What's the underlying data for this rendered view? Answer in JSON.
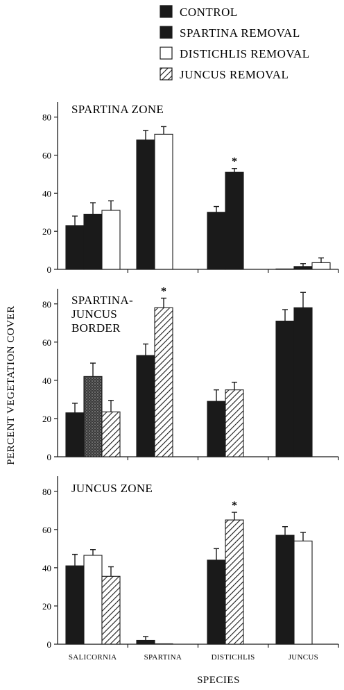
{
  "chart_data": {
    "type": "bar",
    "xlabel": "SPECIES",
    "ylabel": "PERCENT VEGETATION COVER",
    "ylim": [
      0,
      85
    ],
    "yticks": [
      0,
      20,
      40,
      60,
      80
    ],
    "grid": false,
    "legend_position": "top",
    "legend": [
      {
        "label": "CONTROL",
        "style": "solid"
      },
      {
        "label": "SPARTINA REMOVAL",
        "style": "solid"
      },
      {
        "label": "DISTICHLIS REMOVAL",
        "style": "open"
      },
      {
        "label": "JUNCUS REMOVAL",
        "style": "hatched"
      }
    ],
    "categories": [
      "SALICORNIA",
      "SPARTINA",
      "DISTICHLIS",
      "JUNCUS"
    ],
    "panels": [
      {
        "title_lines": [
          "SPARTINA ZONE"
        ],
        "groups": [
          {
            "bars": [
              {
                "style": "solid",
                "value": 23,
                "err": 5
              },
              {
                "style": "solid",
                "value": 29,
                "err": 6
              },
              {
                "style": "open",
                "value": 31,
                "err": 5
              }
            ]
          },
          {
            "bars": [
              {
                "style": "solid",
                "value": 68,
                "err": 5
              },
              {
                "style": "open",
                "value": 71,
                "err": 4
              }
            ]
          },
          {
            "bars": [
              {
                "style": "solid",
                "value": 30,
                "err": 3
              },
              {
                "style": "solid",
                "value": 51,
                "err": 2,
                "sig": "*"
              }
            ]
          },
          {
            "bars": [
              {
                "style": "solid",
                "value": 0,
                "err": 0
              },
              {
                "style": "solid",
                "value": 1.5,
                "err": 1.5
              },
              {
                "style": "open",
                "value": 3.5,
                "err": 2.5
              }
            ]
          }
        ]
      },
      {
        "title_lines": [
          "SPARTINA-",
          "JUNCUS",
          "BORDER"
        ],
        "groups": [
          {
            "bars": [
              {
                "style": "solid",
                "value": 23,
                "err": 5
              },
              {
                "style": "stipple",
                "value": 42,
                "err": 7
              },
              {
                "style": "hatched",
                "value": 23.5,
                "err": 6
              }
            ]
          },
          {
            "bars": [
              {
                "style": "solid",
                "value": 53,
                "err": 6
              },
              {
                "style": "hatched",
                "value": 78,
                "err": 5,
                "sig": "*"
              }
            ]
          },
          {
            "bars": [
              {
                "style": "solid",
                "value": 29,
                "err": 6
              },
              {
                "style": "hatched",
                "value": 35,
                "err": 4
              }
            ]
          },
          {
            "bars": [
              {
                "style": "solid",
                "value": 71,
                "err": 6
              },
              {
                "style": "solid",
                "value": 78,
                "err": 8
              }
            ]
          }
        ]
      },
      {
        "title_lines": [
          "JUNCUS ZONE"
        ],
        "groups": [
          {
            "bars": [
              {
                "style": "solid",
                "value": 41,
                "err": 6
              },
              {
                "style": "open",
                "value": 46.5,
                "err": 3
              },
              {
                "style": "hatched",
                "value": 35.5,
                "err": 5
              }
            ]
          },
          {
            "bars": [
              {
                "style": "solid",
                "value": 2,
                "err": 2
              },
              {
                "style": "solid",
                "value": 0,
                "err": 0
              }
            ]
          },
          {
            "bars": [
              {
                "style": "solid",
                "value": 44,
                "err": 6
              },
              {
                "style": "hatched",
                "value": 65,
                "err": 4,
                "sig": "*"
              }
            ]
          },
          {
            "bars": [
              {
                "style": "solid",
                "value": 57,
                "err": 4.5
              },
              {
                "style": "open",
                "value": 54,
                "err": 4.5
              }
            ]
          }
        ]
      }
    ]
  }
}
